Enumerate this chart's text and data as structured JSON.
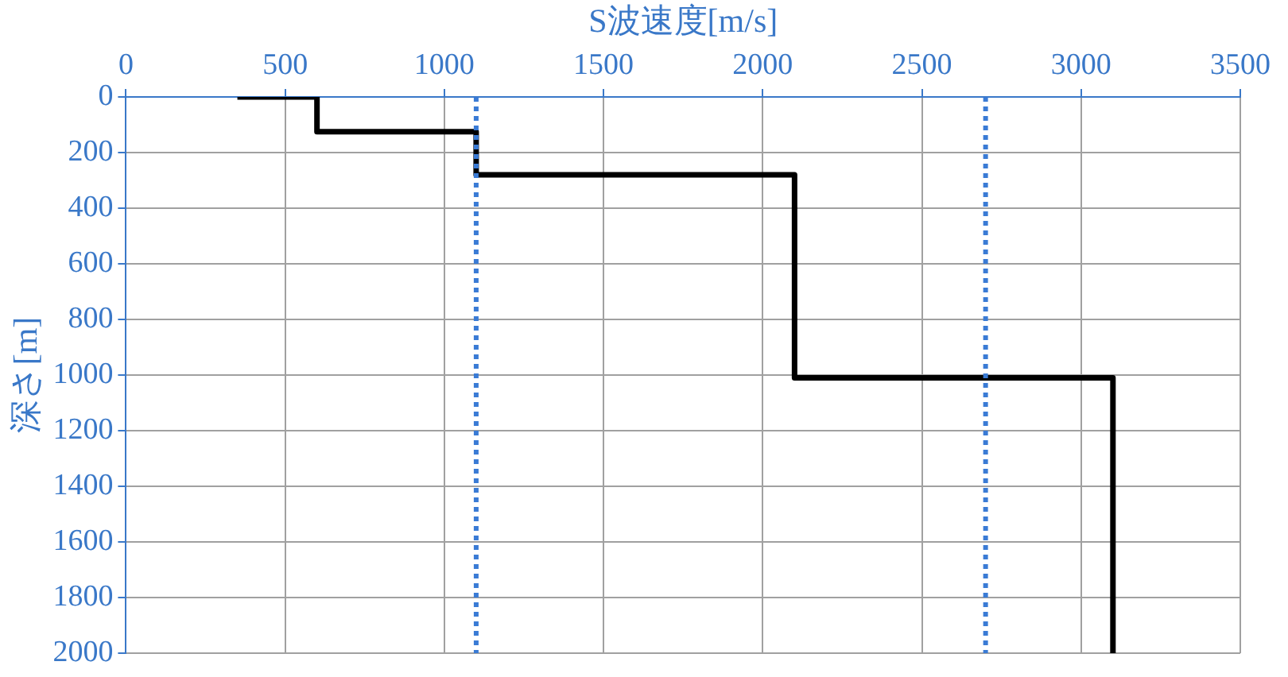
{
  "chart_data": {
    "type": "line",
    "xlabel": "S波速度[m/s]",
    "ylabel": "深さ[m]",
    "series": [
      {
        "color": "#000000",
        "x": [
          350,
          600,
          600,
          1100,
          1100,
          2100,
          2100,
          3100,
          3100
        ],
        "values": [
          0,
          0,
          125,
          125,
          280,
          280,
          1010,
          1010,
          2000
        ]
      }
    ],
    "xlim": [
      0,
      3500
    ],
    "xticks": [
      0,
      500,
      1000,
      1500,
      2000,
      2500,
      3000,
      3500
    ],
    "ylim": [
      2000,
      0
    ],
    "yticks": [
      0,
      200,
      400,
      600,
      800,
      1000,
      1200,
      1400,
      1600,
      1800,
      2000
    ],
    "ref_lines": [
      {
        "axis": "x",
        "value": 1100,
        "color": "#3a7bd5",
        "line_style": "dotted"
      },
      {
        "axis": "x",
        "value": 2700,
        "color": "#3a7bd5",
        "line_style": "dotted"
      }
    ],
    "grid": true,
    "legend": false,
    "marker": "none",
    "line_style": "solid"
  }
}
